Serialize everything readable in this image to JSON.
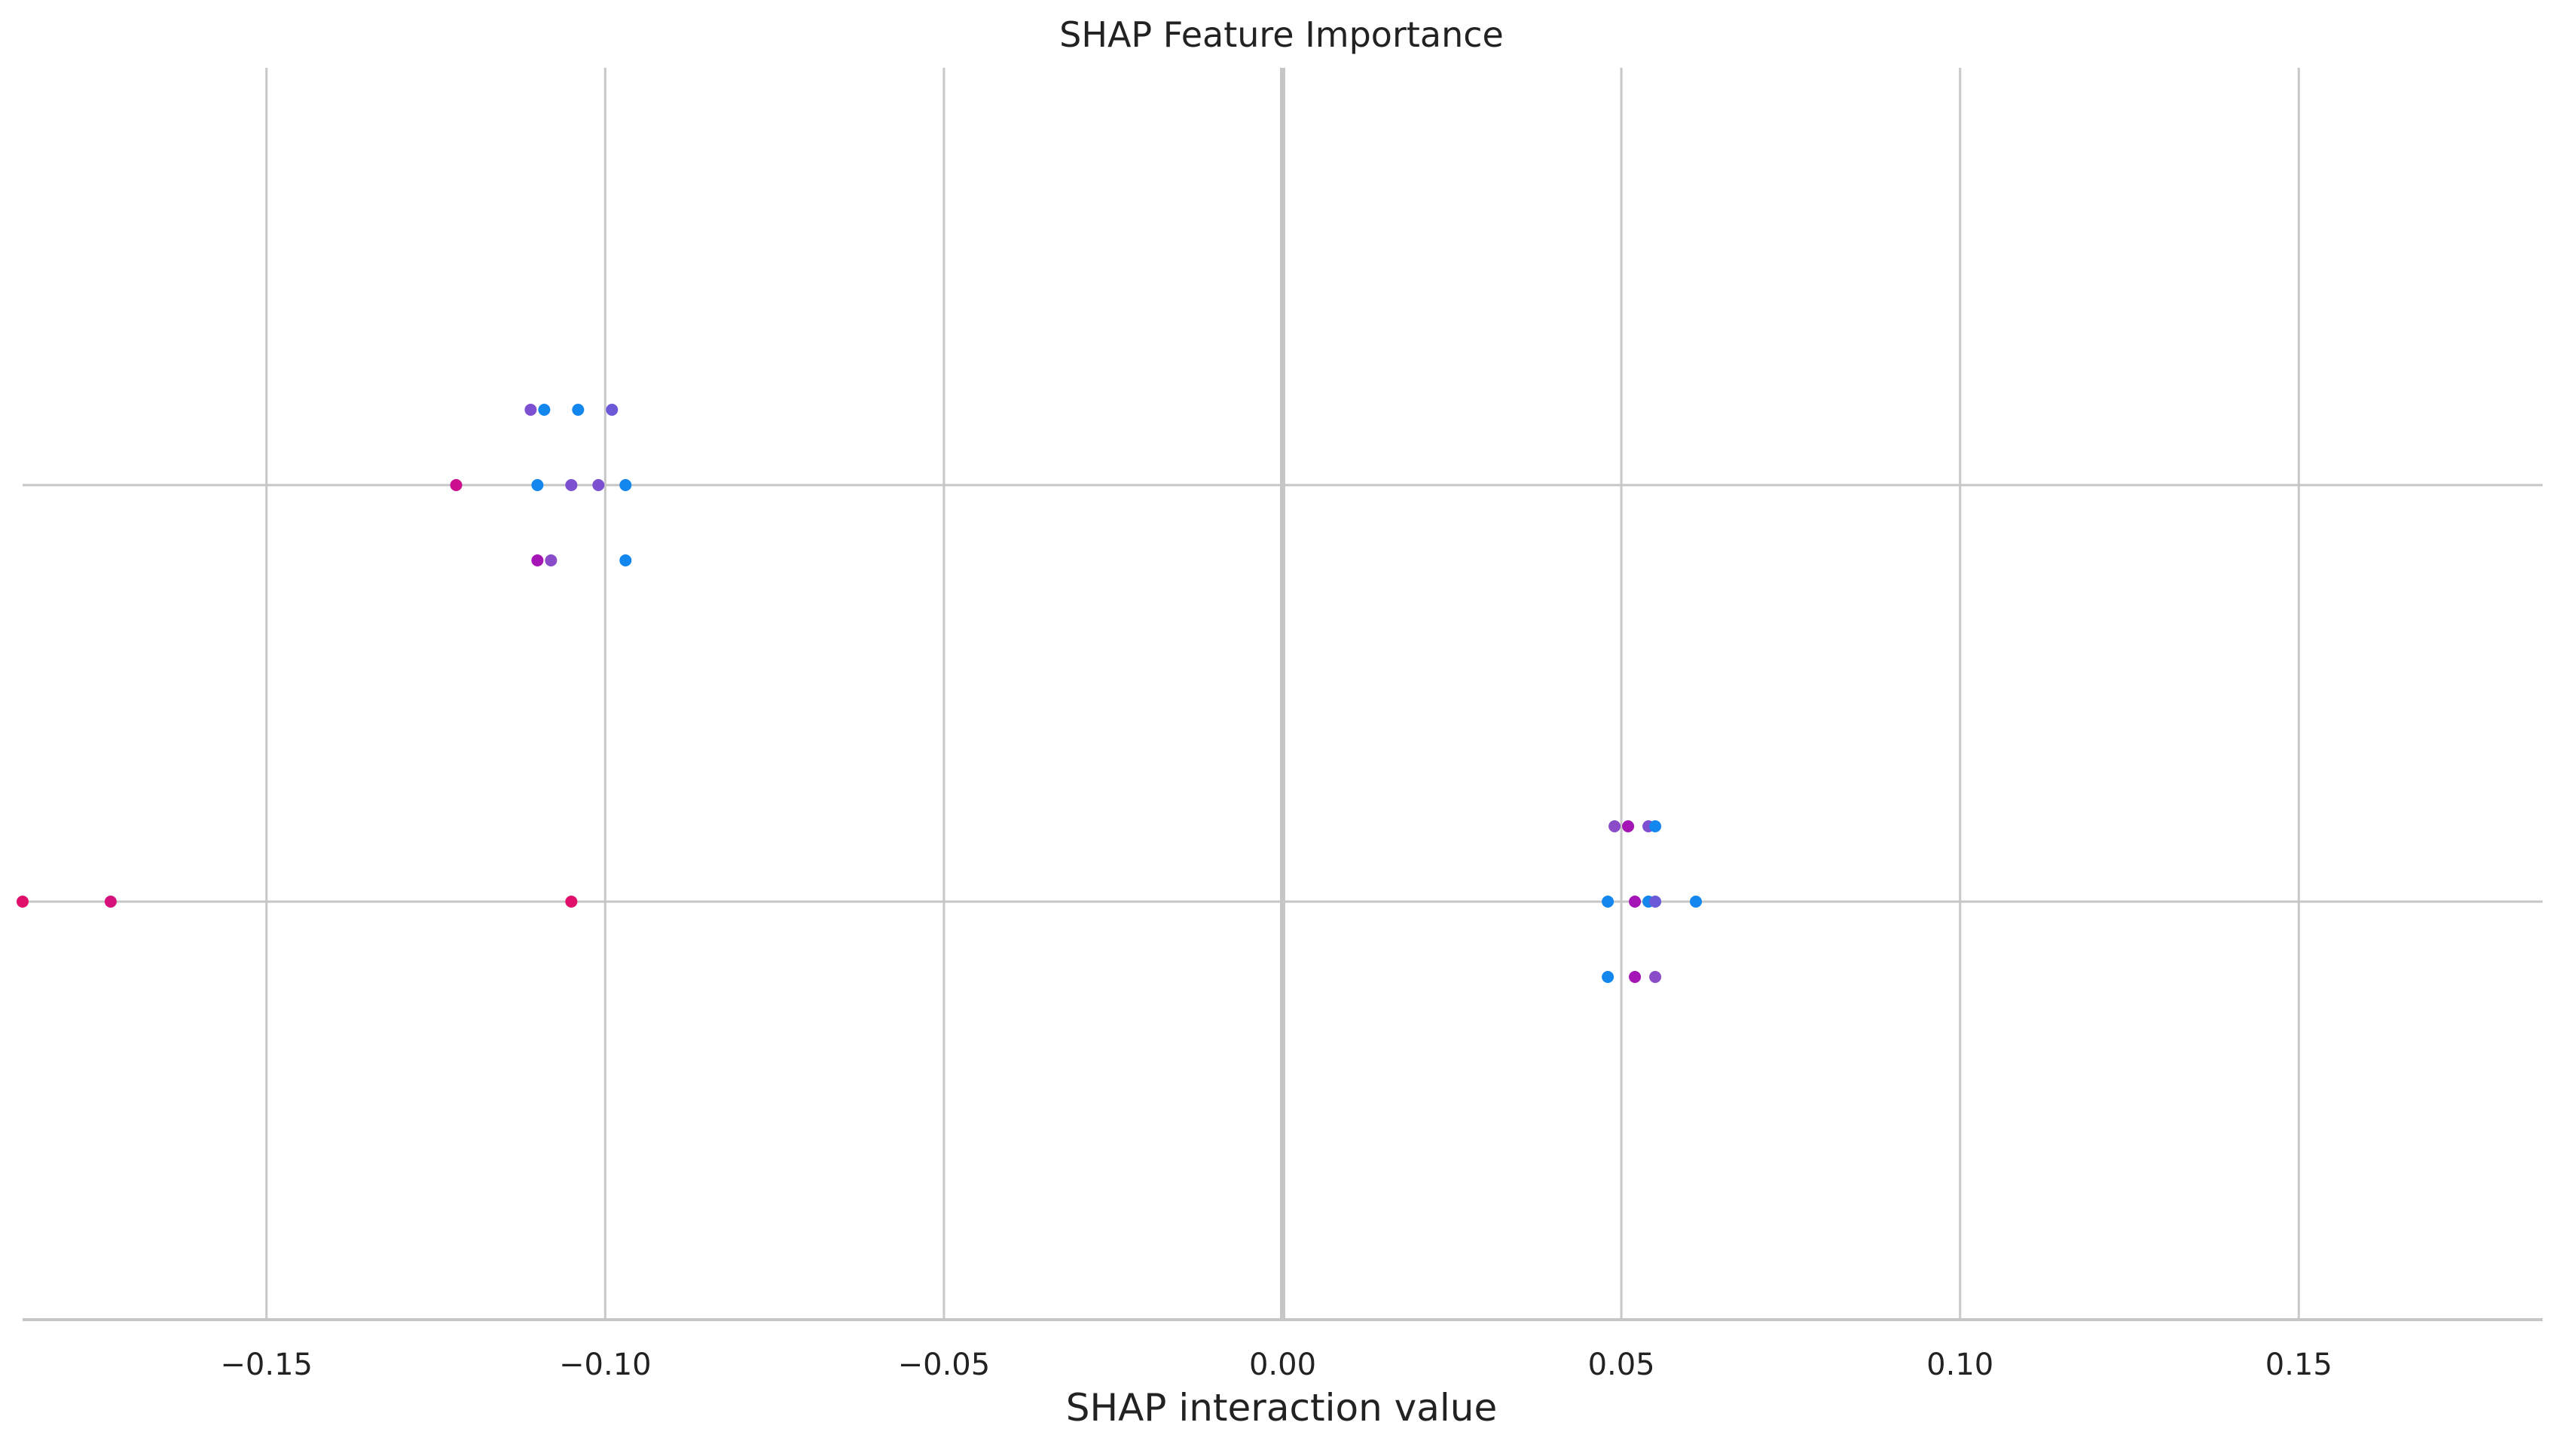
{
  "chart_data": {
    "type": "scatter",
    "title": "SHAP Feature Importance",
    "xlabel": "SHAP interaction value",
    "ylabel": "",
    "xlim": [
      -0.186,
      0.186
    ],
    "xticks": [
      -0.15,
      -0.1,
      -0.05,
      0.0,
      0.05,
      0.1,
      0.15
    ],
    "xtick_labels": [
      "−0.15",
      "−0.10",
      "−0.05",
      "0.00",
      "0.05",
      "0.10",
      "0.15"
    ],
    "rows": [
      {
        "name": "",
        "level": 1
      },
      {
        "name": "",
        "level": 2
      }
    ],
    "grid": true,
    "points": [
      {
        "x": -0.111,
        "row": 1,
        "offset": 1,
        "color": "#7d4fd1"
      },
      {
        "x": -0.109,
        "row": 1,
        "offset": 1,
        "color": "#1487ef"
      },
      {
        "x": -0.104,
        "row": 1,
        "offset": 1,
        "color": "#1487ef"
      },
      {
        "x": -0.099,
        "row": 1,
        "offset": 1,
        "color": "#6a5ad8"
      },
      {
        "x": -0.122,
        "row": 1,
        "offset": 0,
        "color": "#cc0f8e"
      },
      {
        "x": -0.11,
        "row": 1,
        "offset": 0,
        "color": "#1487ef"
      },
      {
        "x": -0.105,
        "row": 1,
        "offset": 0,
        "color": "#7d4fd1"
      },
      {
        "x": -0.101,
        "row": 1,
        "offset": 0,
        "color": "#7d4fd1"
      },
      {
        "x": -0.097,
        "row": 1,
        "offset": 0,
        "color": "#1487ef"
      },
      {
        "x": -0.11,
        "row": 1,
        "offset": -1,
        "color": "#a514b5"
      },
      {
        "x": -0.108,
        "row": 1,
        "offset": -1,
        "color": "#8a4cc8"
      },
      {
        "x": -0.097,
        "row": 1,
        "offset": -1,
        "color": "#1487ef"
      },
      {
        "x": 0.049,
        "row": 2,
        "offset": 1,
        "color": "#8a4cc8"
      },
      {
        "x": 0.051,
        "row": 2,
        "offset": 1,
        "color": "#a514b5"
      },
      {
        "x": 0.054,
        "row": 2,
        "offset": 1,
        "color": "#7d4fd1"
      },
      {
        "x": 0.055,
        "row": 2,
        "offset": 1,
        "color": "#1487ef"
      },
      {
        "x": -0.186,
        "row": 2,
        "offset": 0,
        "color": "#e0106a"
      },
      {
        "x": -0.173,
        "row": 2,
        "offset": 0,
        "color": "#d6117c"
      },
      {
        "x": -0.105,
        "row": 2,
        "offset": 0,
        "color": "#e0106a"
      },
      {
        "x": 0.048,
        "row": 2,
        "offset": 0,
        "color": "#1487ef"
      },
      {
        "x": 0.052,
        "row": 2,
        "offset": 0,
        "color": "#a514b5"
      },
      {
        "x": 0.054,
        "row": 2,
        "offset": 0,
        "color": "#1487ef"
      },
      {
        "x": 0.055,
        "row": 2,
        "offset": 0,
        "color": "#6a5ad8"
      },
      {
        "x": 0.061,
        "row": 2,
        "offset": 0,
        "color": "#1487ef"
      },
      {
        "x": 0.048,
        "row": 2,
        "offset": -1,
        "color": "#1487ef"
      },
      {
        "x": 0.052,
        "row": 2,
        "offset": -1,
        "color": "#a514b5"
      },
      {
        "x": 0.055,
        "row": 2,
        "offset": -1,
        "color": "#8a4cc8"
      }
    ]
  }
}
